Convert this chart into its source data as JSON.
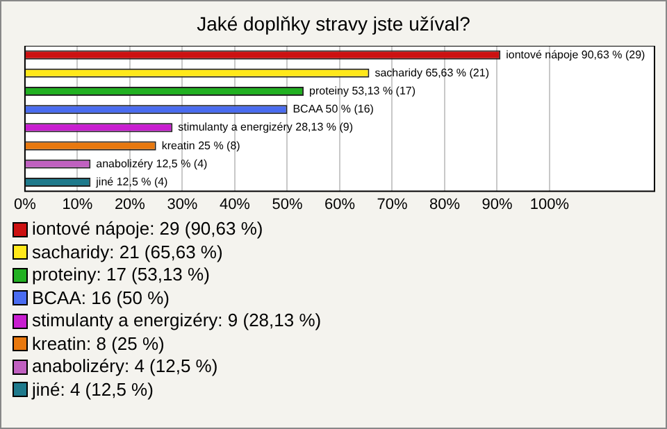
{
  "chart_data": {
    "type": "bar",
    "orientation": "horizontal",
    "title": "Jaké doplňky stravy jste užíval?",
    "categories": [
      null,
      null,
      null,
      null,
      null,
      null,
      null,
      null
    ],
    "values": [
      90.63,
      65.63,
      53.13,
      50,
      28.13,
      25,
      12.5,
      12.5
    ],
    "colors": [
      "#cc1111",
      "#ffe81a",
      "#22b022",
      "#4a6cf0",
      "#c81ed0",
      "#e8780e",
      "#c060c0",
      "#1f7a8c"
    ],
    "value_labels": [
      "iontové nápoje 90,63 % (29)",
      "sacharidy 65,63 % (21)",
      "proteiny 53,13 % (17)",
      "BCAA 50 % (16)",
      "stimulanty a energizéry 28,13 % (9)",
      "kreatin 25 % (8)",
      "anabolizéry 12,5 % (4)",
      "jiné 12,5 % (4)"
    ],
    "xlim": [
      0,
      120
    ],
    "xticks": [
      {
        "value": 0,
        "label": "0%"
      },
      {
        "value": 10,
        "label": "10%"
      },
      {
        "value": 20,
        "label": "20%"
      },
      {
        "value": 30,
        "label": "30%"
      },
      {
        "value": 40,
        "label": "40%"
      },
      {
        "value": 50,
        "label": "50%"
      },
      {
        "value": 60,
        "label": "60%"
      },
      {
        "value": 70,
        "label": "70%"
      },
      {
        "value": 80,
        "label": "80%"
      },
      {
        "value": 90,
        "label": "90%"
      },
      {
        "value": 100,
        "label": "100%"
      }
    ],
    "grid": "x",
    "annotations": [
      "iontové nápoje: 29 (90,63 %)",
      "sacharidy: 21 (65,63 %)",
      "proteiny: 17 (53,13 %)",
      "BCAA: 16 (50 %)",
      "stimulanty a energizéry: 9 (28,13 %)",
      "kreatin: 8 (25 %)",
      "anabolizéry: 4 (12,5 %)",
      "jiné: 4 (12,5 %)"
    ]
  }
}
